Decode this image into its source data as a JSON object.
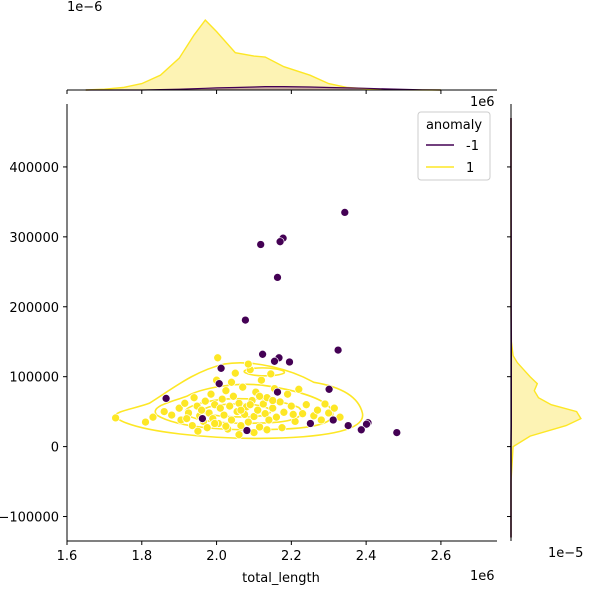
{
  "chart_data": {
    "type": "scatter",
    "title": "",
    "xlabel": "total_length",
    "ylabel": "",
    "x_offset_text": "1e6",
    "top_offset_text": "1e−6",
    "top_right_offset_text": "1e6",
    "right_offset_text": "1e−5",
    "xlim": [
      1.6,
      2.75
    ],
    "ylim": [
      -135000,
      490000
    ],
    "x_ticks": [
      "1.6",
      "1.8",
      "2.0",
      "2.2",
      "2.4",
      "2.6"
    ],
    "x_tick_values": [
      1.6,
      1.8,
      2.0,
      2.2,
      2.4,
      2.6
    ],
    "y_ticks": [
      "−100000",
      "0",
      "100000",
      "200000",
      "300000",
      "400000"
    ],
    "y_tick_values": [
      -100000,
      0,
      100000,
      200000,
      300000,
      400000
    ],
    "grid": false,
    "legend": {
      "title": "anomaly",
      "placement": "top-right",
      "entries": [
        "-1",
        "1"
      ]
    },
    "colors": {
      "anomaly": "#440154",
      "normal": "#fde725",
      "normal_fill": "#fdf3b4",
      "anomaly_fill": "#c9a79f"
    },
    "series": [
      {
        "name": "-1",
        "color": "#440154",
        "points": [
          [
            2.343,
            335000
          ],
          [
            2.178,
            298000
          ],
          [
            2.17,
            293000
          ],
          [
            2.118,
            289000
          ],
          [
            2.163,
            242000
          ],
          [
            2.077,
            181000
          ],
          [
            2.325,
            138000
          ],
          [
            2.123,
            132000
          ],
          [
            2.167,
            127000
          ],
          [
            2.155,
            122000
          ],
          [
            2.195,
            121000
          ],
          [
            2.012,
            112000
          ],
          [
            2.007,
            90000
          ],
          [
            2.163,
            78000
          ],
          [
            2.301,
            82000
          ],
          [
            1.865,
            69000
          ],
          [
            1.962,
            40000
          ],
          [
            2.312,
            38000
          ],
          [
            2.251,
            33000
          ],
          [
            2.352,
            30000
          ],
          [
            2.405,
            34000
          ],
          [
            2.401,
            32000
          ],
          [
            2.387,
            24000
          ],
          [
            2.482,
            20000
          ],
          [
            2.081,
            23000
          ]
        ]
      },
      {
        "name": "1",
        "color": "#fde725",
        "points": [
          [
            1.73,
            41000
          ],
          [
            1.81,
            35000
          ],
          [
            1.83,
            42000
          ],
          [
            1.86,
            50000
          ],
          [
            1.88,
            45000
          ],
          [
            1.9,
            55000
          ],
          [
            1.905,
            38000
          ],
          [
            1.915,
            62000
          ],
          [
            1.925,
            48000
          ],
          [
            1.935,
            30000
          ],
          [
            1.94,
            70000
          ],
          [
            1.948,
            58000
          ],
          [
            1.955,
            44000
          ],
          [
            1.96,
            52000
          ],
          [
            1.965,
            36000
          ],
          [
            1.97,
            65000
          ],
          [
            1.975,
            27000
          ],
          [
            1.98,
            48000
          ],
          [
            1.985,
            75000
          ],
          [
            1.99,
            40000
          ],
          [
            1.995,
            60000
          ],
          [
            2.0,
            95000
          ],
          [
            2.003,
            127000
          ],
          [
            2.005,
            33000
          ],
          [
            2.01,
            55000
          ],
          [
            2.015,
            68000
          ],
          [
            2.02,
            45000
          ],
          [
            2.025,
            80000
          ],
          [
            2.03,
            25000
          ],
          [
            2.035,
            58000
          ],
          [
            2.04,
            38000
          ],
          [
            2.045,
            72000
          ],
          [
            2.05,
            105000
          ],
          [
            2.055,
            50000
          ],
          [
            2.06,
            62000
          ],
          [
            2.065,
            30000
          ],
          [
            2.07,
            85000
          ],
          [
            2.075,
            46000
          ],
          [
            2.08,
            57000
          ],
          [
            2.085,
            35000
          ],
          [
            2.09,
            110000
          ],
          [
            2.095,
            66000
          ],
          [
            2.1,
            43000
          ],
          [
            2.105,
            78000
          ],
          [
            2.11,
            52000
          ],
          [
            2.115,
            28000
          ],
          [
            2.12,
            95000
          ],
          [
            2.125,
            61000
          ],
          [
            2.13,
            47000
          ],
          [
            2.135,
            70000
          ],
          [
            2.14,
            38000
          ],
          [
            2.145,
            104000
          ],
          [
            2.15,
            55000
          ],
          [
            2.155,
            83000
          ],
          [
            2.16,
            42000
          ],
          [
            2.17,
            64000
          ],
          [
            2.18,
            49000
          ],
          [
            2.19,
            75000
          ],
          [
            2.2,
            58000
          ],
          [
            2.21,
            36000
          ],
          [
            2.22,
            82000
          ],
          [
            2.23,
            47000
          ],
          [
            2.24,
            60000
          ],
          [
            2.26,
            44000
          ],
          [
            2.27,
            52000
          ],
          [
            2.28,
            38000
          ],
          [
            2.29,
            61000
          ],
          [
            2.3,
            48000
          ],
          [
            2.315,
            55000
          ],
          [
            2.33,
            42000
          ],
          [
            1.95,
            22000
          ],
          [
            2.06,
            17000
          ],
          [
            2.1,
            20000
          ],
          [
            2.04,
            92000
          ],
          [
            2.085,
            118000
          ],
          [
            1.995,
            33000
          ],
          [
            2.025,
            29000
          ],
          [
            2.135,
            24000
          ],
          [
            2.175,
            27000
          ],
          [
            1.92,
            40000
          ],
          [
            2.065,
            52000
          ],
          [
            2.09,
            60000
          ],
          [
            2.115,
            72000
          ],
          [
            2.15,
            66000
          ],
          [
            2.205,
            46000
          ]
        ]
      }
    ],
    "marginals": {
      "x_density": {
        "x": [
          1.65,
          1.7,
          1.75,
          1.8,
          1.85,
          1.9,
          1.94,
          1.97,
          2.0,
          2.05,
          2.1,
          2.13,
          2.18,
          2.25,
          2.3,
          2.35,
          2.4,
          2.45,
          2.5,
          2.55,
          2.6
        ],
        "normal": [
          0.0,
          0.02,
          0.06,
          0.15,
          0.35,
          0.75,
          1.3,
          1.65,
          1.38,
          0.88,
          0.8,
          0.78,
          0.55,
          0.35,
          0.15,
          0.06,
          0.03,
          0.015,
          0.005,
          0.002,
          0.0
        ],
        "anomaly": [
          0.0,
          0.0,
          0.0,
          0.0,
          0.01,
          0.02,
          0.03,
          0.04,
          0.05,
          0.06,
          0.07,
          0.08,
          0.08,
          0.07,
          0.06,
          0.05,
          0.04,
          0.025,
          0.015,
          0.005,
          0.0
        ]
      },
      "y_density": {
        "y": [
          -130000,
          -100000,
          -50000,
          0,
          15000,
          30000,
          40000,
          50000,
          60000,
          70000,
          80000,
          90000,
          100000,
          110000,
          120000,
          130000,
          150000,
          200000,
          300000,
          400000,
          470000
        ],
        "normal": [
          0.0,
          0.0,
          0.0,
          0.05,
          0.45,
          1.3,
          1.65,
          1.55,
          0.95,
          0.65,
          0.55,
          0.62,
          0.45,
          0.3,
          0.15,
          0.05,
          0.01,
          0.0,
          0.0,
          0.0,
          0.0
        ],
        "anomaly": [
          0.0,
          0.0,
          0.0,
          0.0,
          0.002,
          0.004,
          0.005,
          0.005,
          0.005,
          0.005,
          0.005,
          0.005,
          0.005,
          0.005,
          0.004,
          0.004,
          0.004,
          0.003,
          0.002,
          0.001,
          0.0
        ]
      }
    }
  }
}
